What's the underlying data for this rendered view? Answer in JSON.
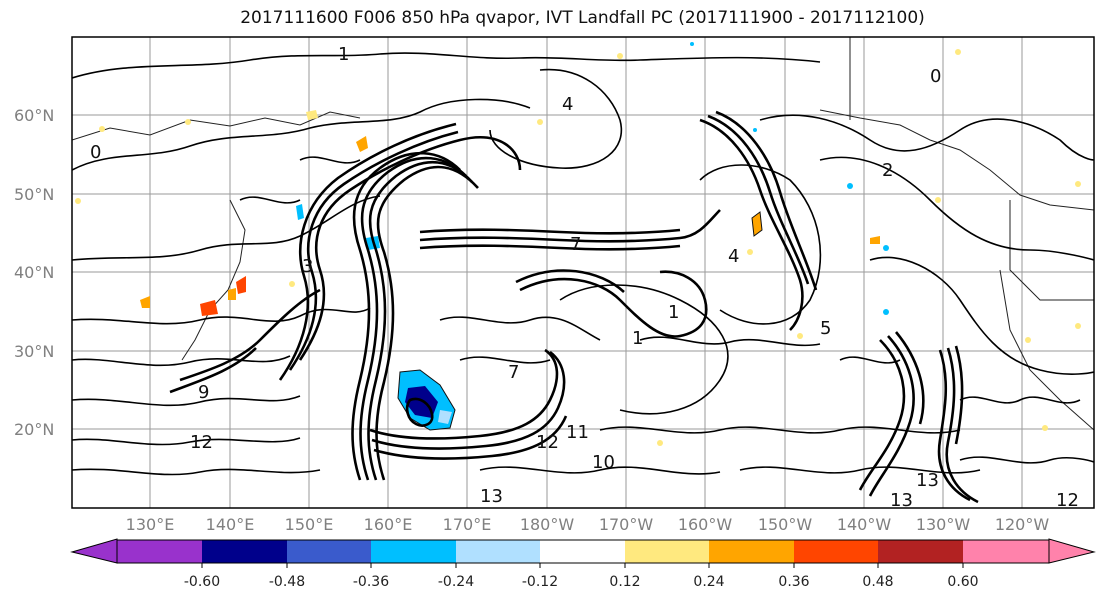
{
  "title": "2017111600 F006 850 hPa qvapor, IVT Landfall PC (2017111900 - 2017112100)",
  "lat_labels": [
    "60°N",
    "50°N",
    "40°N",
    "30°N",
    "20°N"
  ],
  "lon_labels": [
    "130°E",
    "140°E",
    "150°E",
    "160°E",
    "170°E",
    "180°W",
    "170°W",
    "160°W",
    "150°W",
    "140°W",
    "130°W",
    "120°W"
  ],
  "contour_labels": [
    "1",
    "4",
    "0",
    "2",
    "1",
    "7",
    "4",
    "3",
    "1",
    "0",
    "5",
    "9",
    "12",
    "10",
    "11",
    "13",
    "13",
    "13",
    "12",
    "12",
    "7"
  ],
  "colorbar": {
    "ticks": [
      "-0.60",
      "-0.48",
      "-0.36",
      "-0.24",
      "-0.12",
      "0.12",
      "0.24",
      "0.36",
      "0.48",
      "0.60"
    ],
    "colors": [
      "#9932CC",
      "#00008B",
      "#3A5BCC",
      "#00BFFF",
      "#B0E0FF",
      "#FFFFFF",
      "#FFE97F",
      "#FFA500",
      "#FF4500",
      "#B22222",
      "#FF82AB"
    ]
  }
}
